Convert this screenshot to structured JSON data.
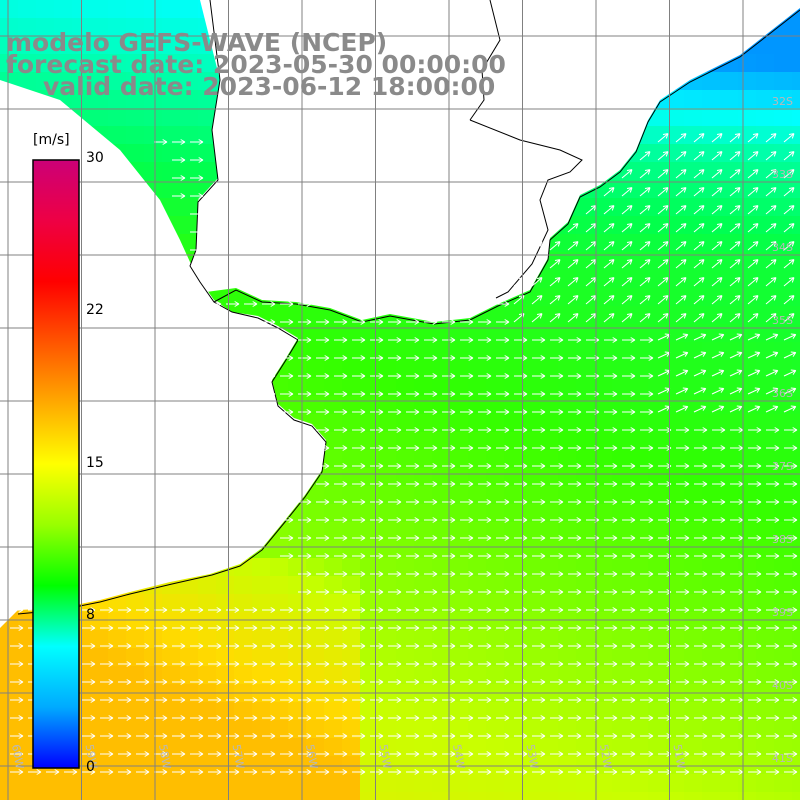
{
  "titles": {
    "model": "modelo GEFS-WAVE (NCEP)",
    "forecast": "forecast date: 2023-05-30 00:00:00",
    "valid": "valid date: 2023-06-12 18:00:00"
  },
  "colorbar": {
    "unit": "[m/s]",
    "ticks": [
      "30",
      "22",
      "15",
      "8",
      "0"
    ],
    "tick_values": [
      30,
      22,
      15,
      8,
      0
    ],
    "range": [
      0,
      30
    ],
    "colors": [
      "#0000ff",
      "#00aaff",
      "#00ffff",
      "#00ff00",
      "#99ff00",
      "#ffff00",
      "#ffaa00",
      "#ff5500",
      "#ff0000",
      "#ee0044",
      "#cc0077"
    ]
  },
  "map": {
    "lon_labels": [
      "60W",
      "59W",
      "58W",
      "57W",
      "56W",
      "55W",
      "54W",
      "53W",
      "52W",
      "51W"
    ],
    "lat_labels": [
      "32S",
      "33S",
      "34S",
      "35S",
      "36S",
      "37S",
      "38S",
      "39S",
      "40S",
      "41S"
    ],
    "lon_range": [
      -61,
      -50
    ],
    "lat_range": [
      -41.5,
      -30.5
    ],
    "land_color": "#ffffff",
    "grid_color": "#808080",
    "arrow_color": "#ffffff"
  }
}
